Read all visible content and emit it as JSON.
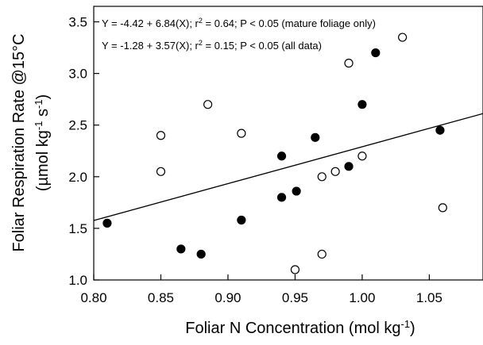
{
  "chart_data": {
    "type": "scatter",
    "xlabel": "Foliar N Concentration (mol kg",
    "xlabel_sup": "-1",
    "xlabel_end": ")",
    "ylabel_line1": "Foliar Respiration Rate @15",
    "ylabel_line1_end": "°C",
    "ylabel_line2_start": "(µmol kg",
    "ylabel_line2_sup1": "-1",
    "ylabel_line2_mid": " s",
    "ylabel_line2_sup2": "-1",
    "ylabel_line2_end": ")",
    "xlim": [
      0.8,
      1.09
    ],
    "ylim": [
      1.0,
      3.65
    ],
    "xticks": [
      "0.80",
      "0.85",
      "0.90",
      "0.95",
      "1.00",
      "1.05"
    ],
    "yticks": [
      "1.0",
      "1.5",
      "2.0",
      "2.5",
      "3.0",
      "3.5"
    ],
    "annotations": [
      {
        "pre": "Y = -4.42 + 6.84(X); r",
        "sup": "2",
        "post": " = 0.64; P < 0.05 (mature foliage only)"
      },
      {
        "pre": "Y = -1.28 + 3.57(X); r",
        "sup": "2",
        "post": " = 0.15; P < 0.05 (all data)"
      }
    ],
    "series": [
      {
        "marker": "filled-circle",
        "points": [
          [
            0.81,
            1.55
          ],
          [
            0.865,
            1.3
          ],
          [
            0.88,
            1.25
          ],
          [
            0.91,
            1.58
          ],
          [
            0.94,
            1.8
          ],
          [
            0.94,
            2.2
          ],
          [
            0.951,
            1.86
          ],
          [
            0.965,
            2.38
          ],
          [
            0.99,
            2.1
          ],
          [
            1.0,
            2.7
          ],
          [
            1.01,
            3.2
          ],
          [
            1.058,
            2.45
          ]
        ]
      },
      {
        "marker": "open-circle",
        "points": [
          [
            0.85,
            2.4
          ],
          [
            0.85,
            2.05
          ],
          [
            0.885,
            2.7
          ],
          [
            0.91,
            2.42
          ],
          [
            0.95,
            1.1
          ],
          [
            0.97,
            1.25
          ],
          [
            0.97,
            2.0
          ],
          [
            0.98,
            2.05
          ],
          [
            0.99,
            3.1
          ],
          [
            1.0,
            2.2
          ],
          [
            1.03,
            3.35
          ],
          [
            1.06,
            1.7
          ]
        ]
      }
    ],
    "regression_line": {
      "intercept": -1.28,
      "slope": 3.57
    }
  }
}
